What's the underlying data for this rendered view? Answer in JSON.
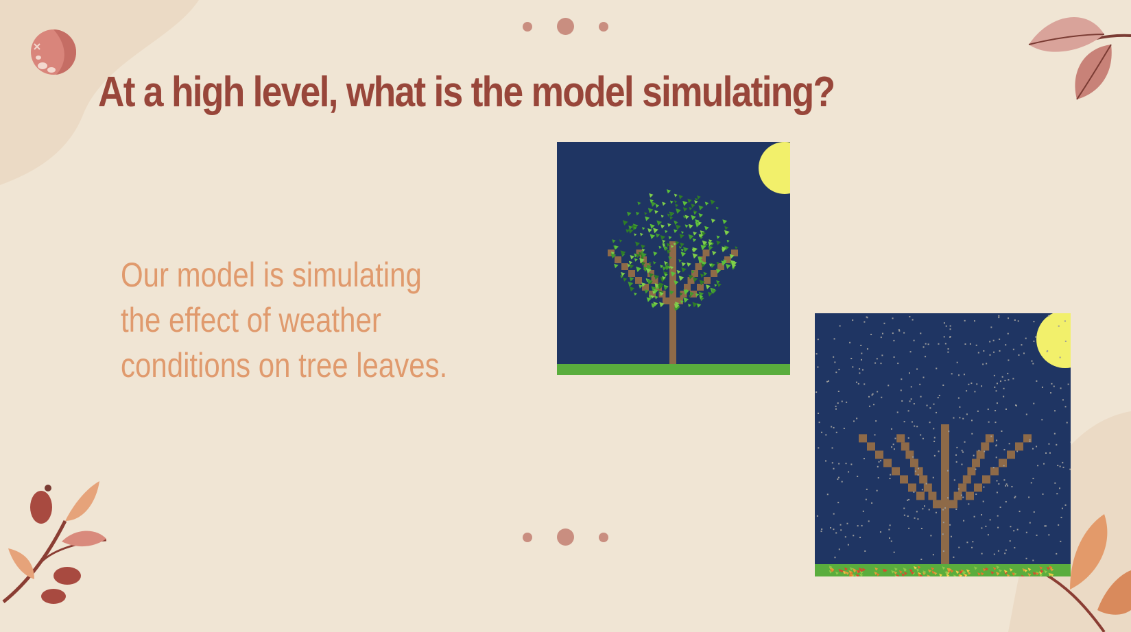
{
  "slide": {
    "title": "At a high level, what is the model simulating?",
    "body_lines": [
      "Our model is simulating",
      "the effect of weather",
      "conditions on tree leaves."
    ]
  },
  "colors": {
    "background": "#f0e5d4",
    "title": "#98463a",
    "body_text": "#e09a6d",
    "dot": "#c98e80",
    "sky": "#1f3563",
    "sun": "#f2f06b",
    "grass": "#5aad3d",
    "trunk": "#8e6a48",
    "leaf": "#3f9a2f",
    "snow": "#9b9b9b"
  },
  "illustrations": {
    "summer_tree": {
      "icon": "tree-with-leaves-night-scene"
    },
    "winter_tree": {
      "icon": "bare-tree-snow-night-scene"
    }
  },
  "decorations": [
    "berry-icon",
    "leaf-cluster-icon",
    "branch-with-berries-icon",
    "leaf-sprig-icon"
  ]
}
